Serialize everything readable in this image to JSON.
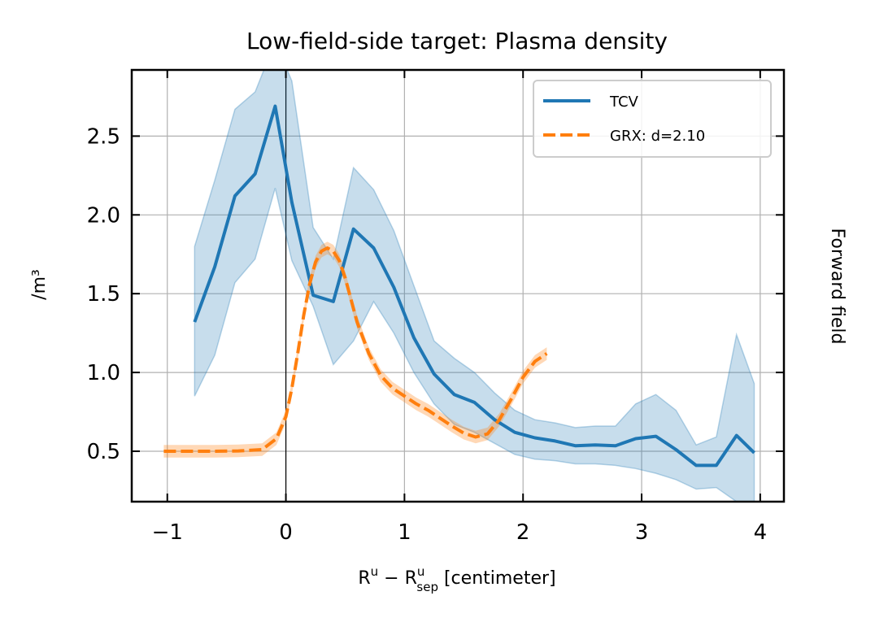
{
  "chart_data": {
    "type": "line",
    "title": "Low-field-side target: Plasma density",
    "xlabel_main": "R",
    "xlabel_sup1": "u",
    "xlabel_minus": " − R",
    "xlabel_sup2": "u",
    "xlabel_sub2": "sep",
    "xlabel_units": " [centimeter]",
    "ylabel": "/m³",
    "right_label": "Forward field",
    "xlim": [
      -1.3,
      4.2
    ],
    "ylim": [
      0.18,
      2.92
    ],
    "xticks": [
      -1,
      0,
      1,
      2,
      3,
      4
    ],
    "xtick_labels": [
      "−1",
      "0",
      "1",
      "2",
      "3",
      "4"
    ],
    "yticks": [
      0.5,
      1.0,
      1.5,
      2.0,
      2.5
    ],
    "ytick_labels": [
      "0.5",
      "1.0",
      "1.5",
      "2.0",
      "2.5"
    ],
    "grid": true,
    "vline_x": 0,
    "legend_placement": "upper right",
    "colors": {
      "tcv": "#1f77b4",
      "grx": "#ff7f0e"
    },
    "series": [
      {
        "name": "TCV",
        "style": "solid",
        "x": [
          -0.77,
          -0.6,
          -0.43,
          -0.26,
          -0.09,
          0.05,
          0.23,
          0.4,
          0.57,
          0.74,
          0.91,
          1.08,
          1.25,
          1.42,
          1.59,
          1.76,
          1.93,
          2.1,
          2.27,
          2.44,
          2.61,
          2.78,
          2.95,
          3.12,
          3.29,
          3.46,
          3.63,
          3.8,
          3.95
        ],
        "y": [
          1.32,
          1.67,
          2.12,
          2.26,
          2.69,
          2.08,
          1.49,
          1.45,
          1.91,
          1.79,
          1.54,
          1.22,
          0.99,
          0.86,
          0.81,
          0.7,
          0.62,
          0.585,
          0.565,
          0.535,
          0.54,
          0.535,
          0.58,
          0.595,
          0.51,
          0.41,
          0.41,
          0.6,
          0.49
        ],
        "band_upper": [
          1.8,
          2.22,
          2.67,
          2.78,
          3.1,
          2.85,
          1.92,
          1.72,
          2.3,
          2.16,
          1.9,
          1.55,
          1.2,
          1.09,
          1.0,
          0.87,
          0.76,
          0.7,
          0.68,
          0.65,
          0.66,
          0.66,
          0.8,
          0.86,
          0.76,
          0.54,
          0.59,
          1.24,
          0.93
        ],
        "band_lower": [
          0.85,
          1.11,
          1.57,
          1.72,
          2.17,
          1.71,
          1.42,
          1.05,
          1.2,
          1.45,
          1.25,
          1.0,
          0.8,
          0.67,
          0.62,
          0.55,
          0.48,
          0.45,
          0.44,
          0.42,
          0.42,
          0.41,
          0.39,
          0.36,
          0.32,
          0.26,
          0.27,
          0.18,
          0.18
        ]
      },
      {
        "name": "GRX: d=2.10",
        "style": "dashed",
        "x": [
          -1.03,
          -0.8,
          -0.6,
          -0.4,
          -0.2,
          -0.08,
          0.0,
          0.05,
          0.1,
          0.15,
          0.2,
          0.25,
          0.3,
          0.35,
          0.4,
          0.45,
          0.5,
          0.55,
          0.6,
          0.7,
          0.8,
          0.9,
          1.0,
          1.1,
          1.2,
          1.3,
          1.4,
          1.5,
          1.6,
          1.7,
          1.8,
          1.9,
          2.0,
          2.1,
          2.2
        ],
        "y": [
          0.5,
          0.5,
          0.5,
          0.502,
          0.51,
          0.58,
          0.72,
          0.9,
          1.12,
          1.36,
          1.56,
          1.7,
          1.77,
          1.79,
          1.77,
          1.71,
          1.6,
          1.46,
          1.32,
          1.12,
          0.98,
          0.9,
          0.85,
          0.8,
          0.76,
          0.71,
          0.66,
          0.615,
          0.59,
          0.61,
          0.7,
          0.83,
          0.97,
          1.07,
          1.12
        ],
        "band_halfwidth": 0.04
      }
    ]
  }
}
